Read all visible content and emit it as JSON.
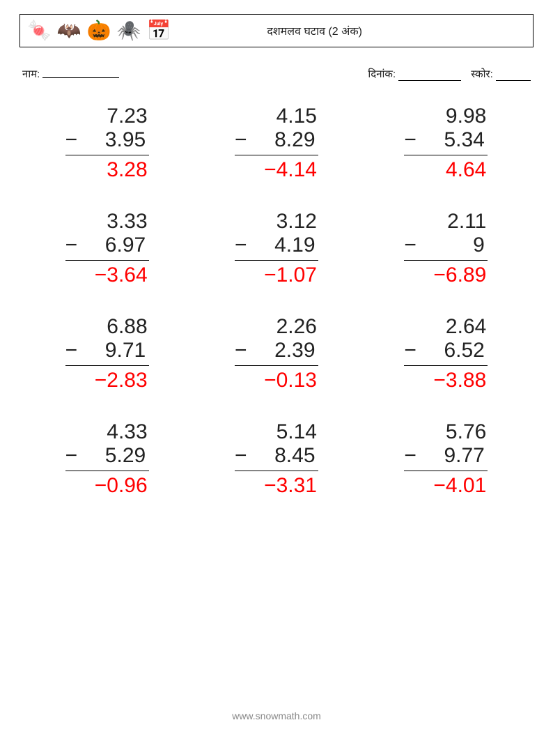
{
  "header": {
    "title": "दशमलव घटाव (2 अंक)",
    "icons": [
      "🍬",
      "🦇",
      "🎃",
      "🕷️",
      "📅"
    ]
  },
  "info": {
    "name_label": "नाम:",
    "date_label": "दिनांक:",
    "score_label": "स्कोर:"
  },
  "style": {
    "problem_fontsize": 30,
    "result_color": "#ff0000",
    "text_color": "#222222",
    "background": "#ffffff"
  },
  "problems": [
    {
      "minuend": "7.23",
      "subtrahend": "3.95",
      "result": "3.28"
    },
    {
      "minuend": "4.15",
      "subtrahend": "8.29",
      "result": "−4.14"
    },
    {
      "minuend": "9.98",
      "subtrahend": "5.34",
      "result": "4.64"
    },
    {
      "minuend": "3.33",
      "subtrahend": "6.97",
      "result": "−3.64"
    },
    {
      "minuend": "3.12",
      "subtrahend": "4.19",
      "result": "−1.07"
    },
    {
      "minuend": "2.11",
      "subtrahend": "9",
      "result": "−6.89"
    },
    {
      "minuend": "6.88",
      "subtrahend": "9.71",
      "result": "−2.83"
    },
    {
      "minuend": "2.26",
      "subtrahend": "2.39",
      "result": "−0.13"
    },
    {
      "minuend": "2.64",
      "subtrahend": "6.52",
      "result": "−3.88"
    },
    {
      "minuend": "4.33",
      "subtrahend": "5.29",
      "result": "−0.96"
    },
    {
      "minuend": "5.14",
      "subtrahend": "8.45",
      "result": "−3.31"
    },
    {
      "minuend": "5.76",
      "subtrahend": "9.77",
      "result": "−4.01"
    }
  ],
  "footer": {
    "url": "www.snowmath.com"
  }
}
